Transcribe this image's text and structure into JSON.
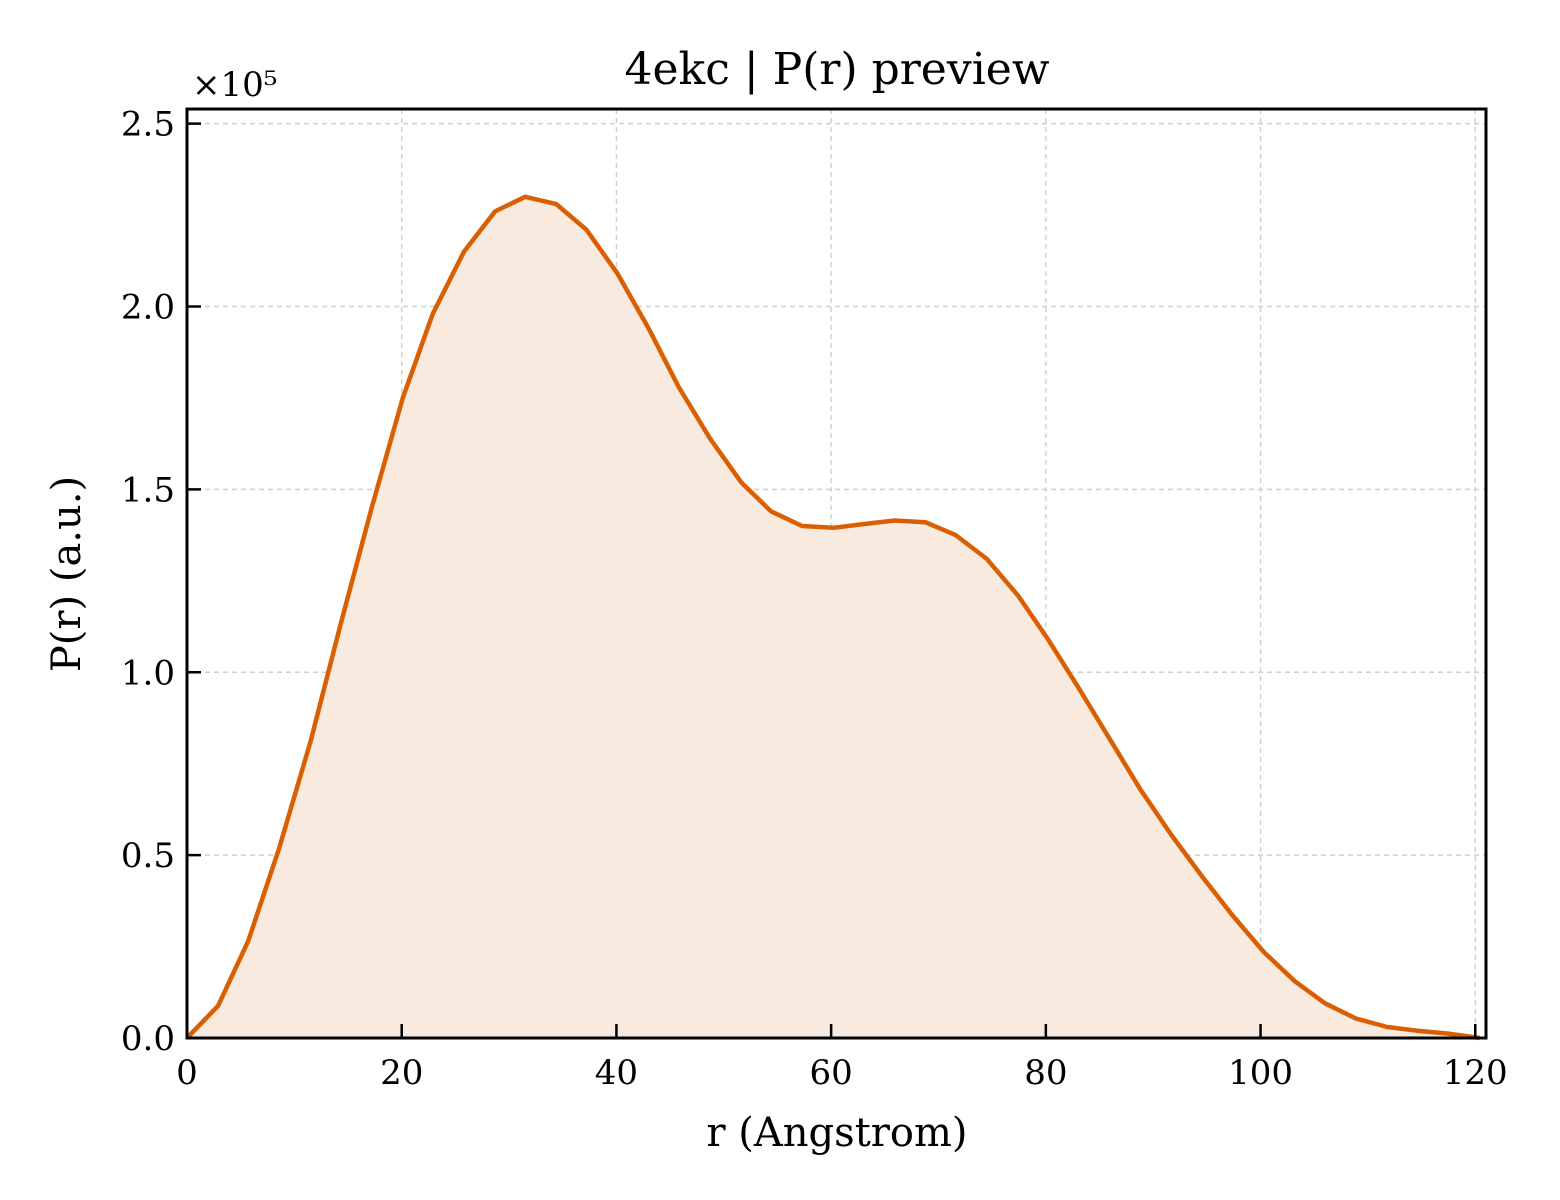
{
  "colors": {
    "series": "#d95f02",
    "fill": "#f9eadf",
    "grid": "#cfcfcf",
    "axis": "#000000"
  },
  "chart_data": {
    "type": "area",
    "title": "4ekc | P(r) preview",
    "xlabel": "r (Angstrom)",
    "ylabel": "P(r) (a.u.)",
    "y_scale_label": "×10⁵",
    "y_scale_factor": 100000,
    "xlim": [
      0,
      121
    ],
    "ylim": [
      0,
      2.54
    ],
    "x_ticks": [
      0,
      20,
      40,
      60,
      80,
      100,
      120
    ],
    "x_tick_labels": [
      "0",
      "20",
      "40",
      "60",
      "80",
      "100",
      "120"
    ],
    "y_ticks": [
      0.0,
      0.5,
      1.0,
      1.5,
      2.0,
      2.5
    ],
    "y_tick_labels": [
      "0.0",
      "0.5",
      "1.0",
      "1.5",
      "2.0",
      "2.5"
    ],
    "grid": true,
    "series": [
      {
        "x": [
          0,
          2.9,
          5.7,
          8.6,
          11.5,
          14.3,
          17.2,
          20.1,
          22.9,
          25.8,
          28.7,
          31.5,
          34.4,
          37.2,
          40.1,
          43.0,
          45.8,
          48.7,
          51.6,
          54.4,
          57.3,
          60.2,
          63.0,
          65.9,
          68.8,
          71.6,
          74.5,
          77.4,
          80.2,
          83.1,
          86.0,
          88.8,
          91.7,
          94.6,
          97.4,
          100.3,
          103.2,
          106.0,
          108.9,
          111.8,
          114.6,
          117.5,
          120.4
        ],
        "y": [
          0.0,
          0.088,
          0.265,
          0.52,
          0.81,
          1.13,
          1.45,
          1.75,
          1.98,
          2.15,
          2.26,
          2.3,
          2.28,
          2.21,
          2.09,
          1.94,
          1.78,
          1.64,
          1.52,
          1.44,
          1.4,
          1.395,
          1.405,
          1.415,
          1.41,
          1.375,
          1.31,
          1.21,
          1.09,
          0.955,
          0.815,
          0.68,
          0.555,
          0.44,
          0.335,
          0.235,
          0.155,
          0.095,
          0.053,
          0.03,
          0.02,
          0.012,
          0.0
        ]
      }
    ]
  }
}
